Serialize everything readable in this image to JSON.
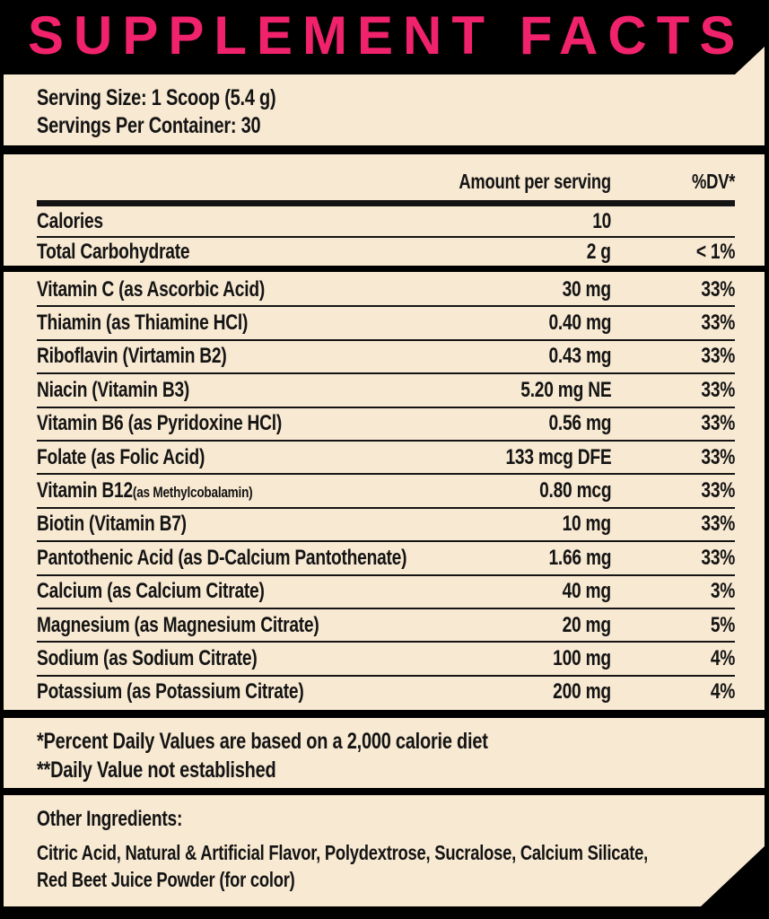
{
  "title": "SUPPLEMENT FACTS",
  "colors": {
    "accent_pink": "#F0226B",
    "panel_cream": "#F8E9D2",
    "background_black": "#000000",
    "text_black": "#141414"
  },
  "serving": {
    "size_line": "Serving Size: 1 Scoop (5.4 g)",
    "servings_line": "Servings Per Container: 30"
  },
  "summary_table": {
    "amount_header": "Amount per serving",
    "dv_header": "%DV*",
    "rows": [
      {
        "name": "Calories",
        "amount": "10",
        "dv": ""
      },
      {
        "name": "Total Carbohydrate",
        "amount": "2 g",
        "dv": "< 1%"
      }
    ]
  },
  "nutrients": {
    "rows": [
      {
        "name": "Vitamin C (as Ascorbic Acid)",
        "amount": "30 mg",
        "dv": "33%"
      },
      {
        "name": "Thiamin (as Thiamine HCl)",
        "amount": "0.40 mg",
        "dv": "33%"
      },
      {
        "name": "Riboflavin (Virtamin B2)",
        "amount": "0.43 mg",
        "dv": "33%"
      },
      {
        "name": "Niacin (Vitamin B3)",
        "amount": "5.20 mg NE",
        "dv": "33%"
      },
      {
        "name": "Vitamin B6 (as Pyridoxine HCl)",
        "amount": "0.56 mg",
        "dv": "33%"
      },
      {
        "name": "Folate (as Folic Acid)",
        "amount": "133 mcg DFE",
        "dv": "33%"
      },
      {
        "name": "Vitamin B12",
        "name_small": "(as Methylcobalamin)",
        "amount": "0.80 mcg",
        "dv": "33%"
      },
      {
        "name": "Biotin (Vitamin B7)",
        "amount": "10 mg",
        "dv": "33%"
      },
      {
        "name": "Pantothenic Acid (as D-Calcium Pantothenate)",
        "amount": "1.66 mg",
        "dv": "33%"
      },
      {
        "name": "Calcium (as Calcium Citrate)",
        "amount": "40 mg",
        "dv": "3%"
      },
      {
        "name": "Magnesium (as Magnesium Citrate)",
        "amount": "20 mg",
        "dv": "5%"
      },
      {
        "name": "Sodium (as Sodium Citrate)",
        "amount": "100 mg",
        "dv": "4%"
      },
      {
        "name": "Potassium (as Potassium Citrate)",
        "amount": "200 mg",
        "dv": "4%"
      }
    ]
  },
  "footnotes": {
    "line1": "*Percent Daily Values are based on a 2,000 calorie diet",
    "line2": "**Daily Value not established"
  },
  "other_ingredients": {
    "heading": "Other Ingredients:",
    "line1": "Citric Acid, Natural & Artificial Flavor, Polydextrose, Sucralose, Calcium Silicate,",
    "line2": "Red Beet Juice Powder (for color)"
  }
}
